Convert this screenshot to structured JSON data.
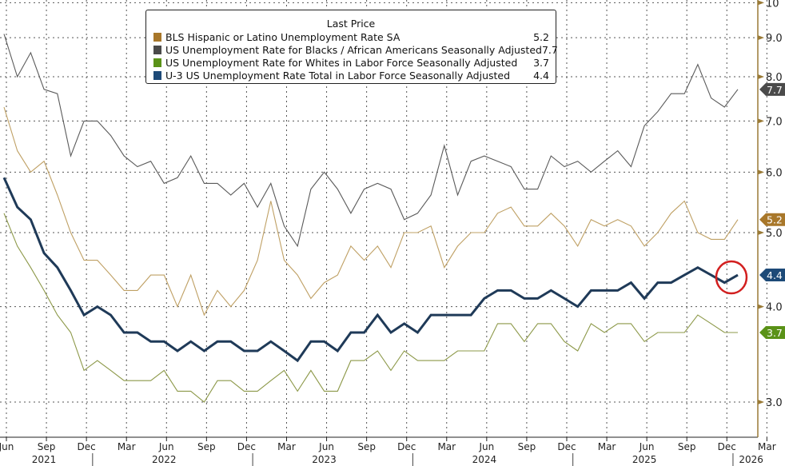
{
  "chart_data": {
    "type": "line",
    "title": "",
    "xlabel": "",
    "ylabel": "",
    "y_scale": "log",
    "ylim": [
      2.7,
      10
    ],
    "y_ticks": [
      "3.0",
      "4.0",
      "5.0",
      "6.0",
      "7.0",
      "8.0",
      "9.0",
      "10"
    ],
    "y_axis_side": "right",
    "grid": true,
    "legend_position": "top-center",
    "legend_title": "Last Price",
    "x": [
      "2021-06",
      "2021-07",
      "2021-08",
      "2021-09",
      "2021-10",
      "2021-11",
      "2021-12",
      "2022-01",
      "2022-02",
      "2022-03",
      "2022-04",
      "2022-05",
      "2022-06",
      "2022-07",
      "2022-08",
      "2022-09",
      "2022-10",
      "2022-11",
      "2022-12",
      "2023-01",
      "2023-02",
      "2023-03",
      "2023-04",
      "2023-05",
      "2023-06",
      "2023-07",
      "2023-08",
      "2023-09",
      "2023-10",
      "2023-11",
      "2023-12",
      "2024-01",
      "2024-02",
      "2024-03",
      "2024-04",
      "2024-05",
      "2024-06",
      "2024-07",
      "2024-08",
      "2024-09",
      "2024-10",
      "2024-11",
      "2024-12",
      "2025-01",
      "2025-02",
      "2025-03",
      "2025-04",
      "2025-05",
      "2025-06",
      "2025-07",
      "2025-08",
      "2025-09",
      "2025-10",
      "2025-11",
      "2025-12",
      "2026-01"
    ],
    "x_ticks": [
      {
        "label": "Jun",
        "date": "2021-06"
      },
      {
        "label": "Sep",
        "date": "2021-09"
      },
      {
        "label": "Dec",
        "date": "2021-12"
      },
      {
        "label": "Mar",
        "date": "2022-03"
      },
      {
        "label": "Jun",
        "date": "2022-06"
      },
      {
        "label": "Sep",
        "date": "2022-09"
      },
      {
        "label": "Dec",
        "date": "2022-12"
      },
      {
        "label": "Mar",
        "date": "2023-03"
      },
      {
        "label": "Jun",
        "date": "2023-06"
      },
      {
        "label": "Sep",
        "date": "2023-09"
      },
      {
        "label": "Dec",
        "date": "2023-12"
      },
      {
        "label": "Mar",
        "date": "2024-03"
      },
      {
        "label": "Jun",
        "date": "2024-06"
      },
      {
        "label": "Sep",
        "date": "2024-09"
      },
      {
        "label": "Dec",
        "date": "2024-12"
      },
      {
        "label": "Mar",
        "date": "2025-03"
      },
      {
        "label": "Jun",
        "date": "2025-06"
      },
      {
        "label": "Sep",
        "date": "2025-09"
      },
      {
        "label": "Dec",
        "date": "2025-12"
      },
      {
        "label": "Mar",
        "date": "2026-03"
      }
    ],
    "year_labels": [
      {
        "label": "2021",
        "date": "2021-09"
      },
      {
        "label": "2022",
        "date": "2022-06"
      },
      {
        "label": "2023",
        "date": "2023-06"
      },
      {
        "label": "2024",
        "date": "2024-06"
      },
      {
        "label": "2025",
        "date": "2025-06"
      },
      {
        "label": "2026",
        "date": "2026-02"
      }
    ],
    "series": [
      {
        "name": "BLS Hispanic or Latino Unemployment Rate SA",
        "last": "5.2",
        "color": "#a8772a",
        "line_color": "#bfa064",
        "values": [
          7.3,
          6.4,
          6.0,
          6.2,
          5.6,
          5.0,
          4.6,
          4.6,
          4.4,
          4.2,
          4.2,
          4.4,
          4.4,
          4.0,
          4.4,
          3.9,
          4.2,
          4.0,
          4.2,
          4.6,
          5.5,
          4.6,
          4.4,
          4.1,
          4.3,
          4.4,
          4.8,
          4.6,
          4.8,
          4.5,
          5.0,
          5.0,
          5.1,
          4.5,
          4.8,
          5.0,
          5.0,
          5.3,
          5.4,
          5.1,
          5.1,
          5.3,
          5.1,
          4.8,
          5.2,
          5.1,
          5.2,
          5.1,
          4.8,
          5.0,
          5.3,
          5.5,
          5.0,
          4.9,
          4.9,
          5.2
        ]
      },
      {
        "name": "US Unemployment Rate for Blacks / African Americans Seasonally Adjusted",
        "last": "7.7",
        "color": "#4a4a4a",
        "line_color": "#5a5a5a",
        "values": [
          9.1,
          8.0,
          8.6,
          7.7,
          7.6,
          6.3,
          7.0,
          7.0,
          6.7,
          6.3,
          6.1,
          6.2,
          5.8,
          5.9,
          6.3,
          5.8,
          5.8,
          5.6,
          5.8,
          5.4,
          5.8,
          5.1,
          4.8,
          5.7,
          6.0,
          5.7,
          5.3,
          5.7,
          5.8,
          5.7,
          5.2,
          5.3,
          5.6,
          6.5,
          5.6,
          6.2,
          6.3,
          6.2,
          6.1,
          5.7,
          5.7,
          6.3,
          6.1,
          6.2,
          6.0,
          6.2,
          6.4,
          6.1,
          6.9,
          7.2,
          7.6,
          7.6,
          8.3,
          7.5,
          7.3,
          7.7
        ]
      },
      {
        "name": "US Unemployment Rate for Whites in Labor Force Seasonally Adjusted",
        "last": "3.7",
        "color": "#5a9218",
        "line_color": "#8c9848",
        "values": [
          5.3,
          4.8,
          4.5,
          4.2,
          3.9,
          3.7,
          3.3,
          3.4,
          3.3,
          3.2,
          3.2,
          3.2,
          3.3,
          3.1,
          3.1,
          3.0,
          3.2,
          3.2,
          3.1,
          3.1,
          3.2,
          3.3,
          3.1,
          3.3,
          3.1,
          3.1,
          3.4,
          3.4,
          3.5,
          3.3,
          3.5,
          3.4,
          3.4,
          3.4,
          3.5,
          3.5,
          3.5,
          3.8,
          3.8,
          3.6,
          3.8,
          3.8,
          3.6,
          3.5,
          3.8,
          3.7,
          3.8,
          3.8,
          3.6,
          3.7,
          3.7,
          3.7,
          3.9,
          3.8,
          3.7,
          3.7
        ]
      },
      {
        "name": "U-3 US Unemployment Rate Total in Labor Force Seasonally Adjusted",
        "last": "4.4",
        "color": "#1d4a78",
        "line_color": "#1f3a58",
        "values": [
          5.9,
          5.4,
          5.2,
          4.7,
          4.5,
          4.2,
          3.9,
          4.0,
          3.9,
          3.7,
          3.7,
          3.6,
          3.6,
          3.5,
          3.6,
          3.5,
          3.6,
          3.6,
          3.5,
          3.5,
          3.6,
          3.5,
          3.4,
          3.6,
          3.6,
          3.5,
          3.7,
          3.7,
          3.9,
          3.7,
          3.8,
          3.7,
          3.9,
          3.9,
          3.9,
          3.9,
          4.1,
          4.2,
          4.2,
          4.1,
          4.1,
          4.2,
          4.1,
          4.0,
          4.2,
          4.2,
          4.2,
          4.3,
          4.1,
          4.3,
          4.3,
          4.4,
          4.5,
          4.4,
          4.3,
          4.4
        ]
      }
    ],
    "annotation": {
      "type": "circle",
      "color": "#d21f1f",
      "target_series": "U-3 US Unemployment Rate Total in Labor Force Seasonally Adjusted",
      "target_date": "2026-01"
    }
  }
}
